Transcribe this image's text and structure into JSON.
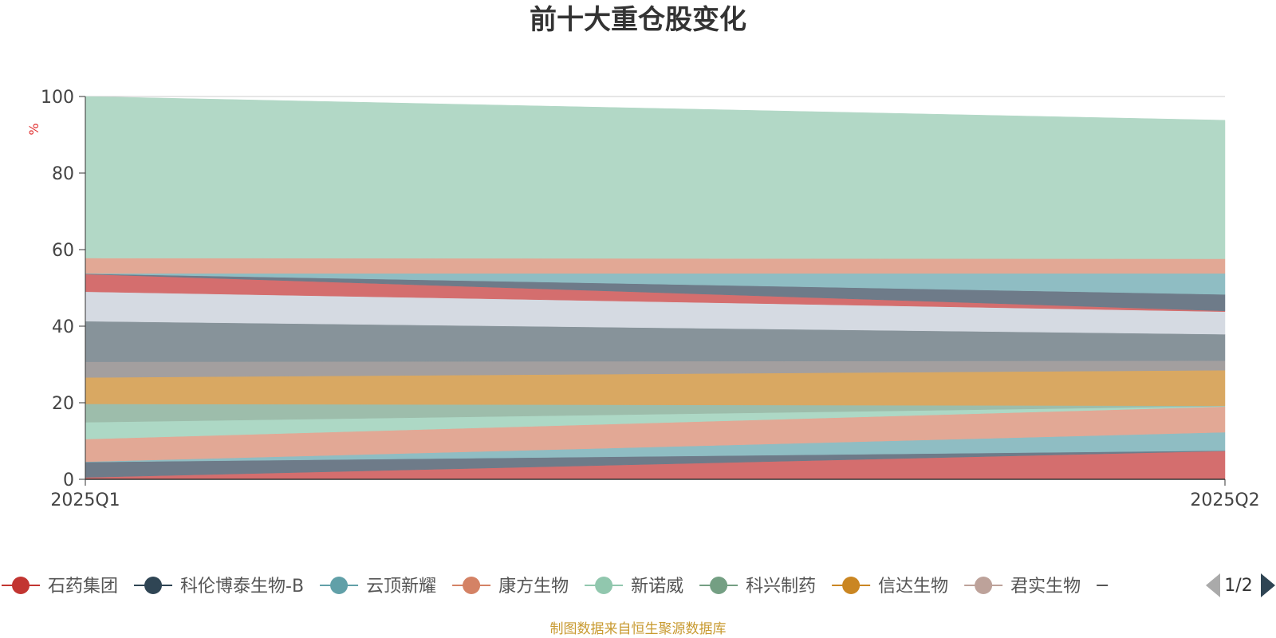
{
  "chart_data": {
    "type": "area",
    "title": "前十大重仓股变化",
    "ylabel": "%",
    "ylim": [
      0,
      100
    ],
    "yticks": [
      0,
      20,
      40,
      60,
      80,
      100
    ],
    "categories": [
      "2025Q1",
      "2025Q2"
    ],
    "stack_layers": [
      {
        "lower": [
          0,
          0
        ],
        "upper": [
          0.5,
          7.4
        ],
        "color": "#d46e6e"
      },
      {
        "lower": [
          0.5,
          7.4
        ],
        "upper": [
          4.5,
          7.5
        ],
        "color": "#6e7b89"
      },
      {
        "lower": [
          4.5,
          7.5
        ],
        "upper": [
          4.6,
          12.3
        ],
        "color": "#8fbdc3"
      },
      {
        "lower": [
          4.6,
          12.3
        ],
        "upper": [
          10.5,
          19.0
        ],
        "color": "#e2a895"
      },
      {
        "lower": [
          10.5,
          19.0
        ],
        "upper": [
          14.9,
          19.1
        ],
        "color": "#add8c5"
      },
      {
        "lower": [
          14.9,
          19.1
        ],
        "upper": [
          19.7,
          19.2
        ],
        "color": "#9dbdab"
      },
      {
        "lower": [
          19.7,
          19.2
        ],
        "upper": [
          26.6,
          28.5
        ],
        "color": "#d9a862"
      },
      {
        "lower": [
          26.6,
          28.5
        ],
        "upper": [
          30.7,
          31.0
        ],
        "color": "#a39f9f"
      },
      {
        "lower": [
          30.7,
          31.0
        ],
        "upper": [
          41.3,
          37.9
        ],
        "color": "#87939a"
      },
      {
        "lower": [
          41.3,
          37.9
        ],
        "upper": [
          49.0,
          43.8
        ],
        "color": "#d5dae2"
      },
      {
        "lower": [
          49.0,
          43.8
        ],
        "upper": [
          53.6,
          44.0
        ],
        "color": "#d46e6e"
      },
      {
        "lower": [
          53.6,
          44.0
        ],
        "upper": [
          53.7,
          48.3
        ],
        "color": "#6e7b89"
      },
      {
        "lower": [
          53.7,
          48.3
        ],
        "upper": [
          53.8,
          53.8
        ],
        "color": "#8fbdc3"
      },
      {
        "lower": [
          53.8,
          53.8
        ],
        "upper": [
          57.8,
          57.6
        ],
        "color": "#e2a895"
      },
      {
        "lower": [
          57.8,
          57.6
        ],
        "upper": [
          100.0,
          93.8
        ],
        "color": "#b2d8c6"
      }
    ],
    "legend": {
      "position": "bottom",
      "items": [
        {
          "name": "石药集团",
          "color": "#c23531"
        },
        {
          "name": "科伦博泰生物-B",
          "color": "#2f4554"
        },
        {
          "name": "云顶新耀",
          "color": "#61a0a8"
        },
        {
          "name": "康方生物",
          "color": "#d48265"
        },
        {
          "name": "新诺威",
          "color": "#91c7ae"
        },
        {
          "name": "科兴制药",
          "color": "#749f83"
        },
        {
          "name": "信达生物",
          "color": "#ca8622"
        },
        {
          "name": "君实生物",
          "color": "#bda29a"
        }
      ],
      "page": "1/2"
    },
    "source": "制图数据来自恒生聚源数据库"
  }
}
